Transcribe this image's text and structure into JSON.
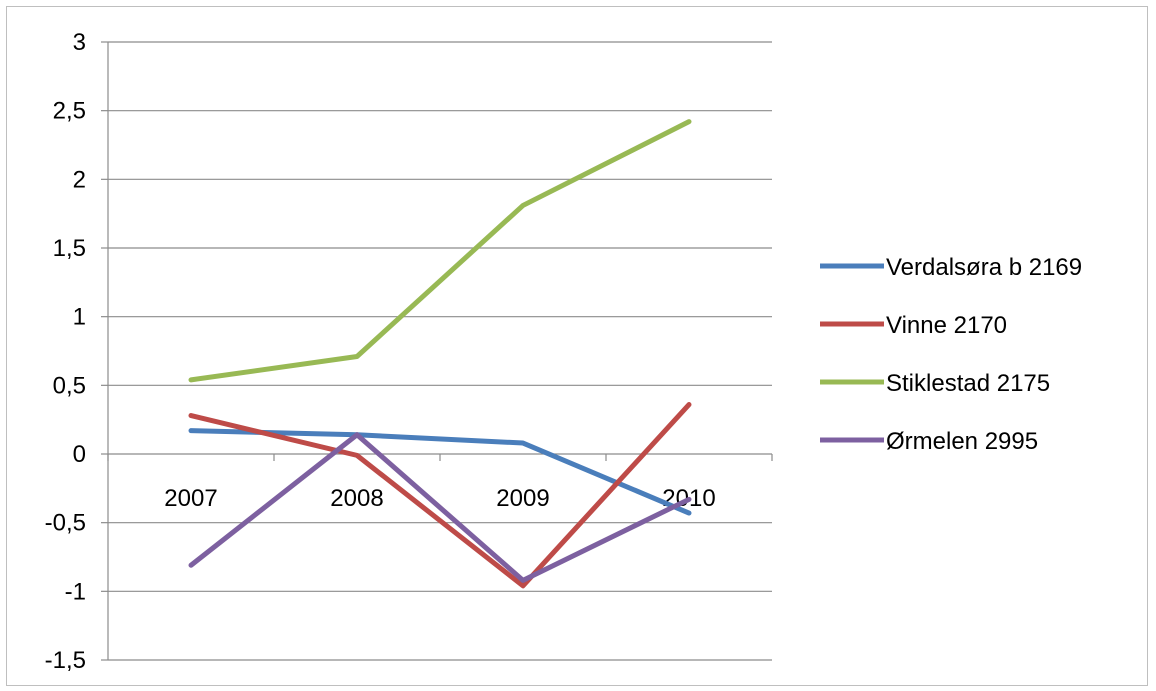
{
  "chart_data": {
    "type": "line",
    "categories": [
      "2007",
      "2008",
      "2009",
      "2010"
    ],
    "ylim": [
      -1.5,
      3
    ],
    "yticks": [
      -1.5,
      -1,
      -0.5,
      0,
      0.5,
      1,
      1.5,
      2,
      2.5,
      3
    ],
    "ytick_labels": [
      "-1,5",
      "-1",
      "-0,5",
      "0",
      "0,5",
      "1",
      "1,5",
      "2",
      "2,5",
      "3"
    ],
    "grid": true,
    "legend_position": "right",
    "series": [
      {
        "name": "Verdalsøra b 2169",
        "color": "#4a7ebb",
        "values": [
          0.17,
          0.14,
          0.08,
          -0.43
        ]
      },
      {
        "name": "Vinne 2170",
        "color": "#be4b48",
        "values": [
          0.28,
          -0.01,
          -0.96,
          0.36
        ]
      },
      {
        "name": "Stiklestad 2175",
        "color": "#98b954",
        "values": [
          0.54,
          0.71,
          1.81,
          2.42
        ]
      },
      {
        "name": "Ørmelen 2995",
        "color": "#7d60a0",
        "values": [
          -0.81,
          0.14,
          -0.92,
          -0.33
        ]
      }
    ]
  }
}
